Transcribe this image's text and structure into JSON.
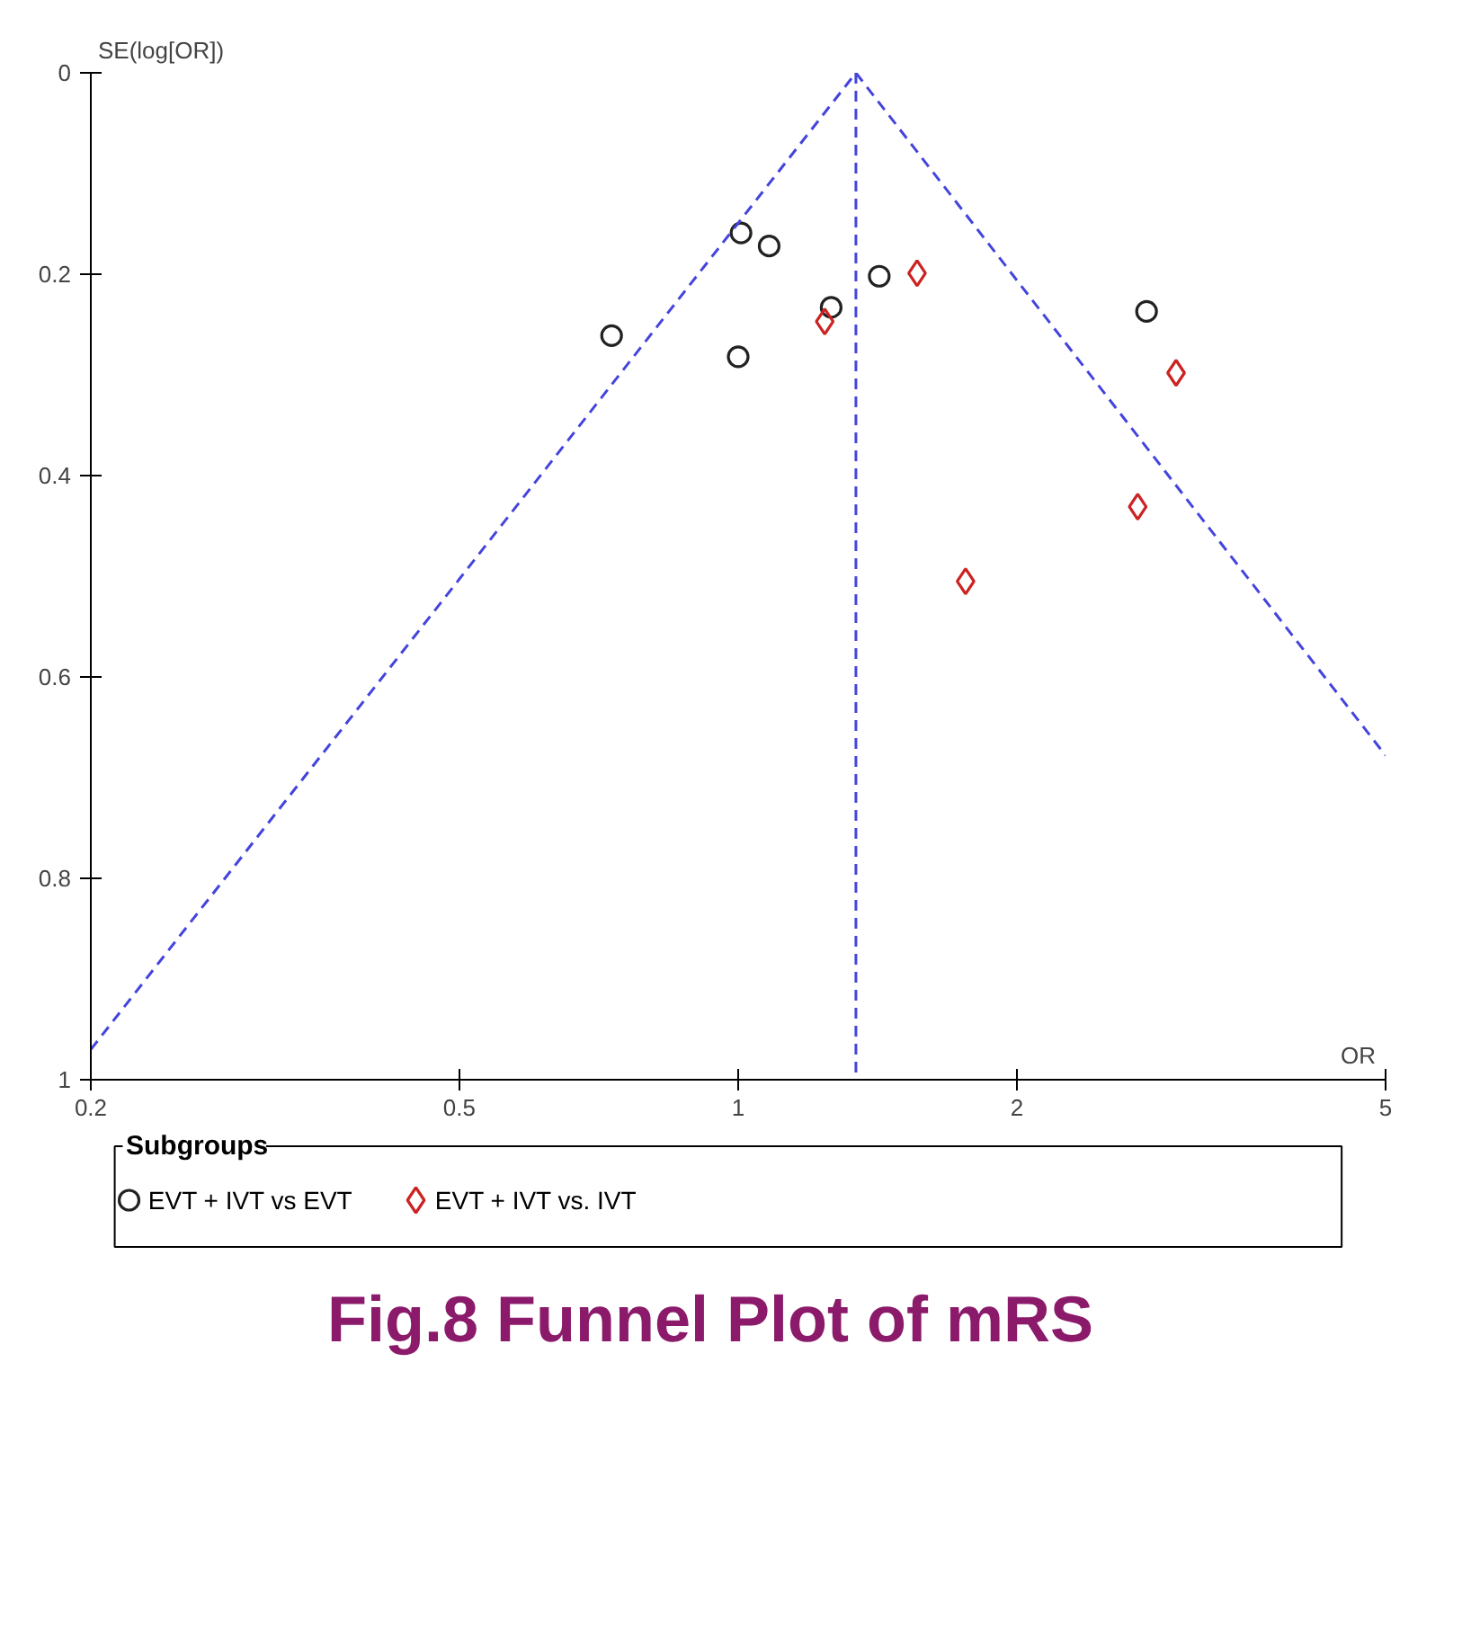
{
  "chart_data": {
    "type": "scatter",
    "title": "Fig.8 Funnel Plot of mRS",
    "xlabel": "OR",
    "ylabel": "SE(log[OR])",
    "legend_title": "Subgroups",
    "log": "x",
    "grid": false,
    "legend": "bottom",
    "xlim": [
      0.2,
      5
    ],
    "xticks": [
      0.2,
      0.5,
      1,
      2,
      5
    ],
    "ylim": [
      1,
      0
    ],
    "yticks": [
      0,
      0.2,
      0.4,
      0.6,
      0.8,
      1
    ],
    "series": [
      {
        "name": "EVT + IVT vs EVT",
        "marker": "circle",
        "color": "#222222",
        "x": [
          0.73,
          1.007,
          1.08,
          1.0,
          1.26,
          1.42,
          2.76
        ],
        "values": [
          0.261,
          0.159,
          0.172,
          0.282,
          0.233,
          0.202,
          0.237
        ]
      },
      {
        "name": "EVT + IVT vs. IVT",
        "marker": "diamond",
        "color": "#cc2222",
        "x": [
          1.24,
          1.56,
          2.97,
          2.7,
          1.76
        ],
        "values": [
          0.247,
          0.199,
          0.298,
          0.431,
          0.505
        ]
      },
      {
        "type": "line",
        "line_style": "dashed",
        "color": "#4444dd",
        "x": [
          0.2,
          1.34,
          5
        ],
        "values": [
          0.97,
          0,
          0.678
        ]
      }
    ],
    "ref_lines": [
      {
        "axis": "x",
        "value": 1.34,
        "color": "#4444dd",
        "line_style": "dashed"
      }
    ]
  }
}
